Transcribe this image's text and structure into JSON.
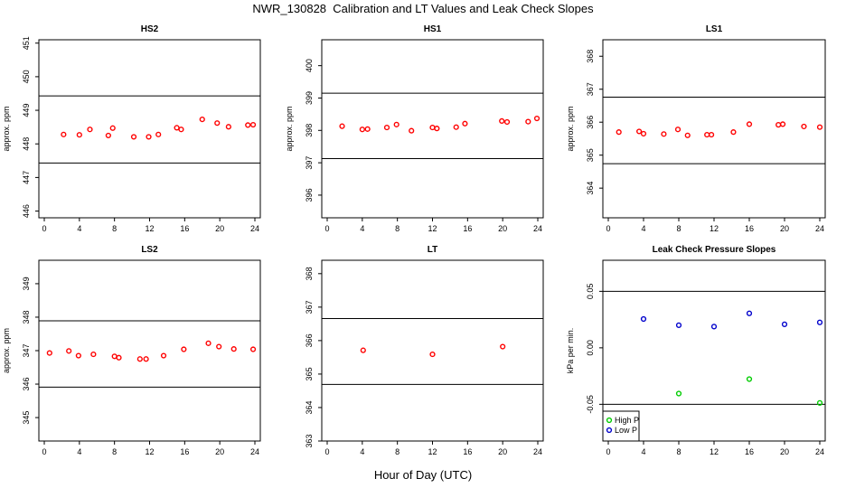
{
  "page": {
    "title": "NWR_130828  Calibration and LT Values and Leak Check Slopes",
    "x_axis_title": "Hour of Day (UTC)"
  },
  "chart_data": [
    {
      "type": "scatter",
      "title": "HS2",
      "ylabel": "approx. ppm",
      "xlim": [
        0,
        24
      ],
      "ylim": [
        445.8,
        451.1
      ],
      "x_ticks": [
        "0",
        "4",
        "8",
        "12",
        "16",
        "20",
        "24"
      ],
      "y_ticks": [
        "446",
        "447",
        "448",
        "449",
        "450",
        "451"
      ],
      "y_tick_values": [
        446,
        447,
        448,
        449,
        450,
        451
      ],
      "hlines": [
        449.43,
        447.43
      ],
      "series": [
        {
          "marker": "circle",
          "color": "#ff0000",
          "x": [
            2.2,
            4.0,
            5.2,
            7.3,
            7.8,
            10.2,
            11.9,
            13.0,
            15.1,
            15.6,
            18.0,
            19.7,
            21.0,
            23.2,
            23.8
          ],
          "y": [
            448.28,
            448.27,
            448.43,
            448.25,
            448.47,
            448.21,
            448.21,
            448.28,
            448.48,
            448.43,
            448.73,
            448.62,
            448.51,
            448.56,
            448.57
          ]
        }
      ]
    },
    {
      "type": "scatter",
      "title": "HS1",
      "ylabel": "approx. ppm",
      "xlim": [
        0,
        24
      ],
      "ylim": [
        395.3,
        400.8
      ],
      "x_ticks": [
        "0",
        "4",
        "8",
        "12",
        "16",
        "20",
        "24"
      ],
      "y_ticks": [
        "396",
        "397",
        "398",
        "399",
        "400"
      ],
      "y_tick_values": [
        396,
        397,
        398,
        399,
        400
      ],
      "hlines": [
        399.15,
        397.13
      ],
      "series": [
        {
          "marker": "circle",
          "color": "#ff0000",
          "x": [
            1.7,
            4.0,
            4.6,
            6.8,
            7.9,
            9.6,
            12.0,
            12.5,
            14.7,
            15.7,
            19.9,
            20.5,
            22.9,
            23.9
          ],
          "y": [
            398.13,
            398.03,
            398.04,
            398.09,
            398.18,
            397.99,
            398.09,
            398.06,
            398.1,
            398.21,
            398.29,
            398.26,
            398.27,
            398.37
          ]
        }
      ]
    },
    {
      "type": "scatter",
      "title": "LS1",
      "ylabel": "approx. ppm",
      "xlim": [
        0,
        24
      ],
      "ylim": [
        363.1,
        368.5
      ],
      "x_ticks": [
        "0",
        "4",
        "8",
        "12",
        "16",
        "20",
        "24"
      ],
      "y_ticks": [
        "364",
        "365",
        "366",
        "367",
        "368"
      ],
      "y_tick_values": [
        364,
        365,
        366,
        367,
        368
      ],
      "hlines": [
        366.76,
        364.74
      ],
      "series": [
        {
          "marker": "circle",
          "color": "#ff0000",
          "x": [
            1.2,
            3.5,
            4.0,
            6.3,
            7.9,
            9.0,
            11.2,
            11.7,
            14.2,
            16.0,
            19.3,
            19.8,
            22.2,
            24.0
          ],
          "y": [
            365.7,
            365.72,
            365.65,
            365.64,
            365.78,
            365.6,
            365.62,
            365.62,
            365.7,
            365.94,
            365.92,
            365.94,
            365.87,
            365.85
          ]
        }
      ]
    },
    {
      "type": "scatter",
      "title": "LS2",
      "ylabel": "approx. ppm",
      "xlim": [
        0,
        24
      ],
      "ylim": [
        344.3,
        349.7
      ],
      "x_ticks": [
        "0",
        "4",
        "8",
        "12",
        "16",
        "20",
        "24"
      ],
      "y_ticks": [
        "345",
        "346",
        "347",
        "348",
        "349"
      ],
      "y_tick_values": [
        345,
        346,
        347,
        348,
        349
      ],
      "hlines": [
        347.89,
        345.91
      ],
      "series": [
        {
          "marker": "circle",
          "color": "#ff0000",
          "x": [
            0.6,
            2.8,
            3.9,
            5.6,
            8.0,
            8.5,
            10.9,
            11.6,
            13.6,
            15.9,
            18.7,
            19.9,
            21.6,
            23.8
          ],
          "y": [
            346.93,
            346.99,
            346.85,
            346.89,
            346.83,
            346.79,
            346.75,
            346.75,
            346.85,
            347.04,
            347.22,
            347.12,
            347.05,
            347.04
          ]
        }
      ]
    },
    {
      "type": "scatter",
      "title": "LT",
      "ylabel": "",
      "xlim": [
        0,
        24
      ],
      "ylim": [
        363.0,
        368.4
      ],
      "x_ticks": [
        "0",
        "4",
        "8",
        "12",
        "16",
        "20",
        "24"
      ],
      "y_ticks": [
        "363",
        "364",
        "365",
        "366",
        "367",
        "368"
      ],
      "y_tick_values": [
        363,
        364,
        365,
        366,
        367,
        368
      ],
      "hlines": [
        366.66,
        364.69
      ],
      "series": [
        {
          "marker": "circle",
          "color": "#ff0000",
          "x": [
            4.1,
            12.0,
            20.0
          ],
          "y": [
            365.71,
            365.59,
            365.82
          ]
        }
      ]
    },
    {
      "type": "scatter",
      "title": "Leak Check Pressure Slopes",
      "ylabel": "kPa per min.",
      "xlim": [
        0,
        24
      ],
      "ylim": [
        -0.0825,
        0.0775
      ],
      "x_ticks": [
        "0",
        "4",
        "8",
        "12",
        "16",
        "20",
        "24"
      ],
      "y_ticks": [
        "-0.05",
        "0.00",
        "0.05"
      ],
      "y_tick_values": [
        -0.05,
        0.0,
        0.05
      ],
      "hlines": [
        0.05,
        -0.05
      ],
      "legend": {
        "placement": "bottom-left",
        "entries": [
          "High P",
          "Low P"
        ]
      },
      "series": [
        {
          "name": "High P",
          "marker": "circle",
          "color": "#00cc00",
          "x": [
            8.0,
            16.0,
            24.0
          ],
          "y": [
            -0.0405,
            -0.0277,
            -0.0488
          ]
        },
        {
          "name": "Low P",
          "marker": "circle",
          "color": "#0000cc",
          "x": [
            4.0,
            8.0,
            12.0,
            16.0,
            20.0,
            24.0
          ],
          "y": [
            0.0255,
            0.02,
            0.0188,
            0.0305,
            0.0208,
            0.0225
          ]
        }
      ]
    }
  ]
}
